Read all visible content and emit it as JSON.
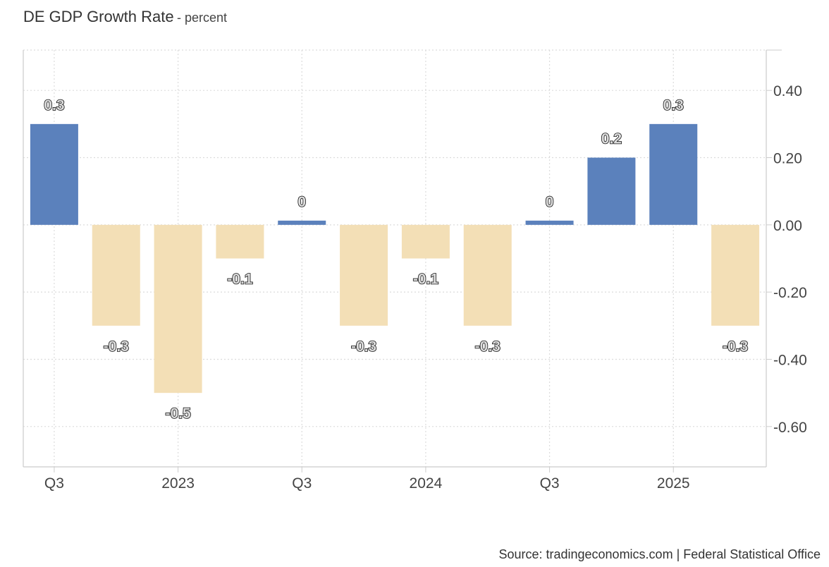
{
  "header": {
    "title": "DE GDP Growth Rate",
    "subtitle": "- percent"
  },
  "footer": {
    "source": "Source: tradingeconomics.com | Federal Statistical Office"
  },
  "chart_data": {
    "type": "bar",
    "title": "DE GDP Growth Rate",
    "subtitle": "percent",
    "xlabel": "",
    "ylabel": "",
    "ylim": [
      -0.72,
      0.52
    ],
    "y_ticks": [
      0.4,
      0.2,
      0.0,
      -0.2,
      -0.4,
      -0.6
    ],
    "y_tick_labels": [
      "0.40",
      "0.20",
      "0.00",
      "-0.20",
      "-0.40",
      "-0.60"
    ],
    "x_tick_labels": [
      "Q3",
      "2023",
      "Q3",
      "2024",
      "Q3",
      "2025"
    ],
    "values": [
      0.3,
      -0.3,
      -0.5,
      -0.1,
      0.0,
      -0.3,
      -0.1,
      -0.3,
      0.0,
      0.2,
      0.3,
      -0.3
    ],
    "data_labels": [
      "0.3",
      "-0.3",
      "-0.5",
      "-0.1",
      "0",
      "-0.3",
      "-0.1",
      "-0.3",
      "0",
      "0.2",
      "0.3",
      "-0.3"
    ],
    "colors": {
      "positive": "#5b81bc",
      "negative": "#f3dfb6",
      "grid": "#dcdcdc",
      "axis": "#cccccc"
    },
    "grid": true,
    "y_axis_side": "right"
  }
}
